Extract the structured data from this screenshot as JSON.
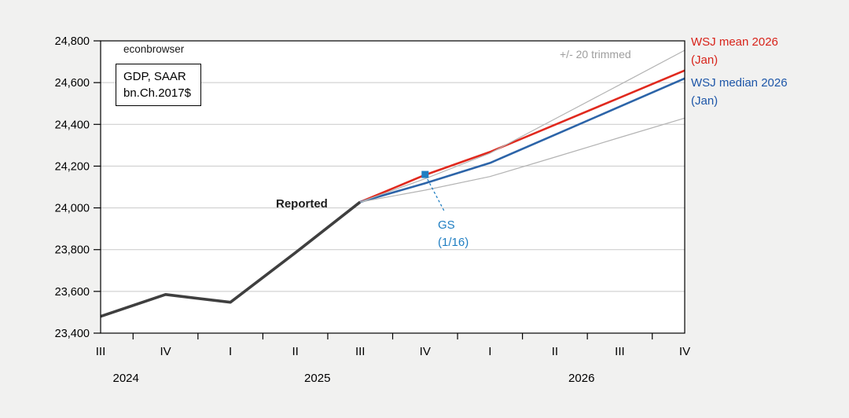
{
  "watermark": "econbrowser",
  "unit_box": {
    "line1": "GDP, SAAR",
    "line2": "bn.Ch.2017$"
  },
  "annotations": {
    "reported_label": "Reported",
    "trimmed_label": "+/- 20 trimmed",
    "wsj_mean_line1": "WSJ mean 2026",
    "wsj_mean_line2": "(Jan)",
    "wsj_median_line1": "WSJ median 2026",
    "wsj_median_line2": "(Jan)",
    "gs_line1": "GS",
    "gs_line2": "(1/16)"
  },
  "colors": {
    "reported": "#3f3f3f",
    "wsj_mean": "#e0291e",
    "wsj_median": "#2c64a8",
    "trimmed": "#b3b3b3",
    "gs": "#1f7ec2",
    "mean_label": "#d8231a",
    "median_label": "#1d56a8",
    "trimmed_label": "#9e9e9e",
    "grid": "#c9c9c9",
    "frame": "#000000",
    "axis_text": "#000000",
    "plot_bg": "#ffffff",
    "page_bg": "#f1f1f0"
  },
  "chart_data": {
    "type": "line",
    "title": "GDP, SAAR bn.Ch.2017$",
    "x_axis": {
      "quarters": [
        "2024 Q3",
        "2024 Q4",
        "2025 Q1",
        "2025 Q2",
        "2025 Q3",
        "2025 Q4",
        "2026 Q1",
        "2026 Q2",
        "2026 Q3",
        "2026 Q4"
      ],
      "tick_labels": [
        "III",
        "IV",
        "I",
        "II",
        "III",
        "IV",
        "I",
        "II",
        "III",
        "IV"
      ],
      "year_labels": [
        {
          "text": "2024",
          "position": 0.39
        },
        {
          "text": "2025",
          "position": 3.34
        },
        {
          "text": "2026",
          "position": 7.41
        }
      ]
    },
    "y_axis": {
      "min": 23400,
      "max": 24800,
      "tick_step": 200,
      "tick_labels": [
        "23,400",
        "23,600",
        "23,800",
        "24,000",
        "24,200",
        "24,400",
        "24,600",
        "24,800"
      ],
      "grid": true
    },
    "series": [
      {
        "name": "Reported",
        "color": "#3f3f3f",
        "width": 3.6,
        "x_start": 0,
        "values": [
          23480,
          23585,
          23548,
          23785,
          24028
        ]
      },
      {
        "name": "WSJ mean 2026 (Jan)",
        "color": "#e0291e",
        "width": 2.6,
        "x_start": 4,
        "values": [
          24028,
          24158,
          24268,
          24398,
          24528,
          24658
        ]
      },
      {
        "name": "WSJ median 2026 (Jan)",
        "color": "#2c64a8",
        "width": 2.6,
        "x_start": 4,
        "values": [
          24028,
          24118,
          24215,
          24350,
          24485,
          24620
        ]
      },
      {
        "name": "+20 trimmed",
        "color": "#b3b3b3",
        "width": 1.2,
        "x_start": 4,
        "values": [
          24028,
          24140,
          24262,
          24426,
          24590,
          24755
        ]
      },
      {
        "name": "-20 trimmed",
        "color": "#b3b3b3",
        "width": 1.2,
        "x_start": 4,
        "values": [
          24028,
          24085,
          24150,
          24243,
          24337,
          24430
        ]
      }
    ],
    "gs_point": {
      "name": "GS (1/16)",
      "quarter": "2025 Q4",
      "x_index": 5,
      "value": 24160
    },
    "legend_position": "right-outside"
  }
}
